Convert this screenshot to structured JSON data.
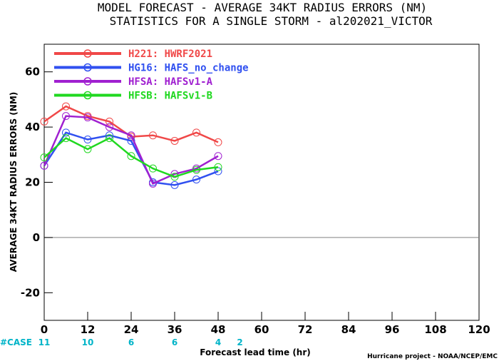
{
  "chart_data": {
    "type": "line",
    "title": "MODEL FORECAST - AVERAGE 34KT RADIUS ERRORS (NM)",
    "subtitle": "STATISTICS FOR A SINGLE STORM - al202021_VICTOR",
    "xlabel": "Forecast lead time (hr)",
    "ylabel": "AVERAGE 34KT RADIUS ERRORS (NM)",
    "xlim": [
      0,
      120
    ],
    "ylim": [
      -30,
      70
    ],
    "xticks": [
      "0",
      "12",
      "24",
      "36",
      "48",
      "60",
      "72",
      "84",
      "96",
      "108",
      "120"
    ],
    "yticks": [
      "-20",
      "0",
      "20",
      "40",
      "60"
    ],
    "x": [
      0,
      6,
      12,
      18,
      24,
      30,
      36,
      42,
      48
    ],
    "series": [
      {
        "name": "H221: HWRF2021",
        "color": "#f04848",
        "values": [
          42,
          47.5,
          44,
          42,
          36.5,
          37,
          35,
          38,
          34.5
        ]
      },
      {
        "name": "HG16: HAFS_no_change",
        "color": "#3050f0",
        "values": [
          26,
          38,
          35.5,
          37,
          35,
          20,
          19,
          21,
          24
        ]
      },
      {
        "name": "HFSA: HAFSv1-A",
        "color": "#a020d0",
        "values": [
          26,
          44,
          43.5,
          40,
          37,
          19.5,
          23,
          25,
          29.5
        ]
      },
      {
        "name": "HFSB: HAFSv1-B",
        "color": "#20d820",
        "values": [
          29,
          36,
          32,
          36,
          29.5,
          25,
          22,
          24.5,
          25.5
        ]
      }
    ],
    "case_label": "#CASE",
    "case_counts": [
      {
        "hour": 0,
        "count": "11"
      },
      {
        "hour": 12,
        "count": "10"
      },
      {
        "hour": 24,
        "count": "6"
      },
      {
        "hour": 36,
        "count": "6"
      },
      {
        "hour": 48,
        "count": "4"
      },
      {
        "hour": 54,
        "count": "2"
      }
    ],
    "legend_position": "top-left",
    "grid": false
  },
  "credit": "Hurricane project - NOAA/NCEP/EMC",
  "colors": {
    "case_text": "#00b4c8",
    "zero_line": "#808080"
  }
}
